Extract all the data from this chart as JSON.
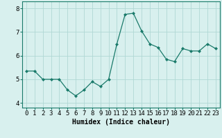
{
  "x": [
    0,
    1,
    2,
    3,
    4,
    5,
    6,
    7,
    8,
    9,
    10,
    11,
    12,
    13,
    14,
    15,
    16,
    17,
    18,
    19,
    20,
    21,
    22,
    23
  ],
  "y": [
    5.35,
    5.35,
    5.0,
    5.0,
    5.0,
    4.55,
    4.3,
    4.55,
    4.9,
    4.7,
    5.0,
    6.5,
    7.75,
    7.8,
    7.05,
    6.5,
    6.35,
    5.85,
    5.75,
    6.3,
    6.2,
    6.2,
    6.5,
    6.3
  ],
  "line_color": "#1a7a6a",
  "marker": "D",
  "marker_size": 2,
  "bg_color": "#d8f0ee",
  "grid_color": "#b0d8d4",
  "xlabel": "Humidex (Indice chaleur)",
  "ylim": [
    3.8,
    8.3
  ],
  "xlim": [
    -0.5,
    23.5
  ],
  "yticks": [
    4,
    5,
    6,
    7,
    8
  ],
  "xticks": [
    0,
    1,
    2,
    3,
    4,
    5,
    6,
    7,
    8,
    9,
    10,
    11,
    12,
    13,
    14,
    15,
    16,
    17,
    18,
    19,
    20,
    21,
    22,
    23
  ],
  "xtick_labels": [
    "0",
    "1",
    "2",
    "3",
    "4",
    "5",
    "6",
    "7",
    "8",
    "9",
    "10",
    "11",
    "12",
    "13",
    "14",
    "15",
    "16",
    "17",
    "18",
    "19",
    "20",
    "21",
    "22",
    "23"
  ],
  "label_fontsize": 7,
  "tick_fontsize": 6.5
}
